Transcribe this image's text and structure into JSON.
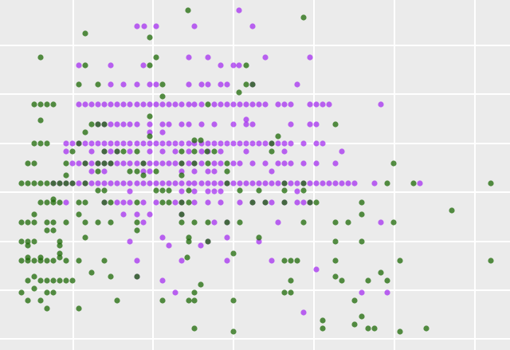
{
  "chart_data": {
    "type": "scatter",
    "xlim": [
      0,
      640
    ],
    "ylim": [
      439,
      0
    ],
    "xticks": [
      92,
      192,
      293,
      394,
      495,
      596
    ],
    "yticks": [
      57,
      118,
      180,
      241,
      303,
      364,
      425
    ],
    "grid": true,
    "series": [
      {
        "color": "#a020f0b0",
        "x": [
          300,
          172,
          181,
          196,
          244,
          317,
          237,
          261,
          333,
          389,
          99,
          139,
          180,
          277,
          293,
          300,
          139,
          155,
          172,
          188,
          196,
          237,
          253,
          261,
          277,
          285,
          317,
          373,
          99,
          107,
          115,
          123,
          131,
          139,
          147,
          155,
          163,
          172,
          180,
          188,
          196,
          204,
          212,
          220,
          228,
          237,
          244,
          253,
          269,
          277,
          285,
          293,
          301,
          309,
          317,
          325,
          333,
          349,
          357,
          365,
          389,
          397,
          405,
          413,
          478,
          309,
          123,
          131,
          139,
          147,
          155,
          163,
          172,
          188,
          204,
          212,
          228,
          237,
          253,
          269,
          293,
          309,
          317,
          365,
          389,
          397,
          188,
          204,
          83,
          91,
          99,
          107,
          115,
          123,
          131,
          139,
          147,
          155,
          163,
          172,
          180,
          188,
          196,
          204,
          212,
          220,
          228,
          237,
          244,
          253,
          261,
          269,
          277,
          285,
          293,
          301,
          309,
          317,
          325,
          333,
          341,
          349,
          357,
          365,
          381,
          397,
          405,
          83,
          115,
          131,
          139,
          147,
          163,
          188,
          204,
          220,
          237,
          253,
          261,
          277,
          309,
          357,
          429,
          91,
          99,
          107,
          115,
          123,
          131,
          139,
          147,
          155,
          163,
          172,
          180,
          188,
          196,
          204,
          212,
          220,
          228,
          237,
          244,
          253,
          269,
          277,
          293,
          301,
          317,
          333,
          349,
          357,
          365,
          381,
          397,
          421,
          115,
          131,
          180,
          188,
          228,
          244,
          261,
          269,
          341,
          67,
          75,
          83,
          91,
          99,
          107,
          115,
          123,
          131,
          139,
          147,
          155,
          163,
          172,
          180,
          188,
          196,
          204,
          212,
          220,
          228,
          237,
          244,
          253,
          261,
          269,
          277,
          285,
          293,
          301,
          309,
          317,
          325,
          333,
          341,
          349,
          357,
          365,
          373,
          381,
          389,
          397,
          405,
          413,
          421,
          429,
          437,
          445,
          470,
          527,
          163,
          228,
          244,
          261,
          269,
          277,
          373,
          83,
          131,
          147,
          155,
          163,
          180,
          196,
          220,
          228,
          244,
          261,
          277,
          301,
          317,
          333,
          341,
          357,
          373,
          381,
          389,
          155,
          172,
          188,
          228,
          180,
          269,
          285,
          349,
          478,
          204,
          285,
          163,
          261,
          325,
          212,
          252,
          172,
          228,
          285,
          341,
          397,
          172,
          204,
          220,
          454,
          486,
          381
        ],
        "values": [
          13,
          33,
          33,
          33,
          33,
          33,
          72,
          72,
          72,
          72,
          82,
          82,
          82,
          82,
          82,
          82,
          106,
          106,
          106,
          106,
          106,
          106,
          106,
          106,
          106,
          106,
          106,
          106,
          131,
          131,
          131,
          131,
          131,
          131,
          131,
          131,
          131,
          131,
          131,
          131,
          131,
          131,
          131,
          131,
          131,
          131,
          131,
          131,
          131,
          131,
          131,
          131,
          131,
          131,
          131,
          131,
          131,
          131,
          131,
          131,
          131,
          131,
          131,
          131,
          131,
          150,
          156,
          156,
          156,
          156,
          156,
          156,
          156,
          156,
          156,
          156,
          156,
          156,
          156,
          156,
          156,
          156,
          156,
          156,
          156,
          156,
          166,
          166,
          180,
          180,
          180,
          180,
          180,
          180,
          180,
          180,
          180,
          180,
          180,
          180,
          180,
          180,
          180,
          180,
          180,
          180,
          180,
          180,
          180,
          180,
          180,
          180,
          180,
          180,
          180,
          180,
          180,
          180,
          180,
          180,
          180,
          180,
          180,
          180,
          180,
          180,
          180,
          190,
          190,
          190,
          190,
          190,
          190,
          190,
          190,
          190,
          190,
          190,
          190,
          190,
          190,
          190,
          190,
          205,
          205,
          205,
          205,
          205,
          205,
          205,
          205,
          205,
          205,
          205,
          205,
          205,
          205,
          205,
          205,
          205,
          205,
          205,
          205,
          205,
          205,
          205,
          205,
          205,
          205,
          205,
          205,
          205,
          205,
          205,
          205,
          205,
          215,
          215,
          215,
          215,
          215,
          215,
          215,
          215,
          215,
          230,
          230,
          230,
          230,
          230,
          230,
          230,
          230,
          230,
          230,
          230,
          230,
          230,
          230,
          230,
          230,
          230,
          230,
          230,
          230,
          230,
          230,
          230,
          230,
          230,
          230,
          230,
          230,
          230,
          230,
          230,
          230,
          230,
          230,
          230,
          230,
          230,
          230,
          230,
          230,
          230,
          230,
          230,
          230,
          230,
          230,
          230,
          230,
          230,
          230,
          240,
          240,
          240,
          240,
          240,
          240,
          240,
          254,
          254,
          254,
          254,
          254,
          254,
          254,
          254,
          254,
          254,
          254,
          254,
          254,
          254,
          254,
          254,
          254,
          254,
          254,
          254,
          269,
          269,
          269,
          269,
          279,
          279,
          279,
          279,
          279,
          298,
          298,
          303,
          303,
          303,
          308,
          308,
          327,
          327,
          327,
          327,
          338,
          347,
          352,
          367,
          367,
          367,
          392
        ]
      },
      {
        "color": "#1f6a08c0",
        "x": [
          236,
          381,
          107,
          188,
          51,
          196,
          107,
          188,
          309,
          99,
          123,
          204,
          309,
          317,
          300,
          204,
          43,
          51,
          59,
          67,
          261,
          188,
          51,
          115,
          123,
          131,
          421,
          107,
          188,
          349,
          244,
          252,
          43,
          51,
          59,
          99,
          341,
          91,
          131,
          147,
          155,
          172,
          228,
          244,
          260,
          269,
          341,
          35,
          43,
          83,
          107,
          123,
          131,
          139,
          180,
          228,
          244,
          261,
          285,
          494,
          123,
          163,
          172,
          196,
          285,
          83,
          180,
          228,
          27,
          35,
          43,
          51,
          59,
          67,
          75,
          83,
          91,
          107,
          285,
          357,
          381,
          486,
          519,
          616,
          123,
          131,
          196,
          204,
          212,
          237,
          301,
          325,
          357,
          381,
          67,
          51,
          59,
          67,
          75,
          99,
          107,
          131,
          139,
          172,
          204,
          212,
          228,
          237,
          317,
          333,
          357,
          389,
          397,
          454,
          567,
          43,
          99,
          228,
          454,
          27,
          35,
          43,
          59,
          67,
          83,
          107,
          123,
          139,
          172,
          228,
          244,
          261,
          285,
          301,
          381,
          421,
          437,
          494,
          59,
          67,
          172,
          107,
          237,
          325,
          27,
          35,
          43,
          75,
          237,
          261,
          421,
          454,
          35,
          75,
          75,
          293,
          35,
          51,
          75,
          235,
          27,
          35,
          43,
          51,
          59,
          67,
          83,
          99,
          131,
          357,
          365,
          373,
          421,
          502,
          616,
          115,
          478,
          43,
          139,
          172,
          421,
          35,
          51,
          59,
          67,
          75,
          83,
          91,
          365,
          429,
          462,
          486,
          252,
          43,
          27,
          59,
          67,
          244,
          357,
          365,
          35,
          51,
          147,
          204,
          237,
          244,
          293,
          445,
          59,
          99,
          454,
          405,
          445,
          244,
          405,
          462,
          470,
          535,
          293,
          502
        ],
        "values": [
          13,
          22,
          42,
          47,
          72,
          72,
          82,
          82,
          82,
          106,
          106,
          106,
          106,
          106,
          116,
          121,
          131,
          131,
          131,
          131,
          131,
          146,
          151,
          156,
          156,
          156,
          156,
          166,
          171,
          171,
          176,
          176,
          180,
          180,
          180,
          180,
          180,
          190,
          190,
          190,
          190,
          190,
          190,
          190,
          190,
          190,
          190,
          205,
          205,
          205,
          205,
          205,
          205,
          205,
          205,
          205,
          205,
          205,
          205,
          205,
          215,
          215,
          215,
          215,
          215,
          220,
          220,
          220,
          230,
          230,
          230,
          230,
          230,
          230,
          230,
          230,
          230,
          230,
          230,
          230,
          230,
          230,
          230,
          230,
          239,
          239,
          239,
          239,
          239,
          239,
          239,
          239,
          239,
          239,
          250,
          254,
          254,
          254,
          254,
          254,
          254,
          254,
          254,
          254,
          254,
          254,
          254,
          254,
          254,
          254,
          254,
          254,
          254,
          254,
          264,
          269,
          269,
          269,
          269,
          279,
          279,
          279,
          279,
          279,
          279,
          279,
          279,
          279,
          279,
          279,
          279,
          279,
          279,
          279,
          279,
          279,
          279,
          279,
          289,
          289,
          289,
          298,
          298,
          298,
          303,
          303,
          303,
          303,
          303,
          303,
          303,
          303,
          308,
          308,
          318,
          318,
          323,
          323,
          323,
          323,
          327,
          327,
          327,
          327,
          327,
          327,
          327,
          327,
          327,
          327,
          327,
          327,
          327,
          327,
          327,
          342,
          342,
          347,
          347,
          347,
          347,
          352,
          352,
          352,
          352,
          352,
          352,
          352,
          352,
          352,
          352,
          352,
          357,
          362,
          367,
          367,
          367,
          367,
          367,
          367,
          377,
          377,
          377,
          377,
          377,
          377,
          377,
          377,
          387,
          387,
          397,
          402,
          407,
          412,
          412,
          412,
          412,
          412,
          416,
          416
        ]
      }
    ]
  }
}
